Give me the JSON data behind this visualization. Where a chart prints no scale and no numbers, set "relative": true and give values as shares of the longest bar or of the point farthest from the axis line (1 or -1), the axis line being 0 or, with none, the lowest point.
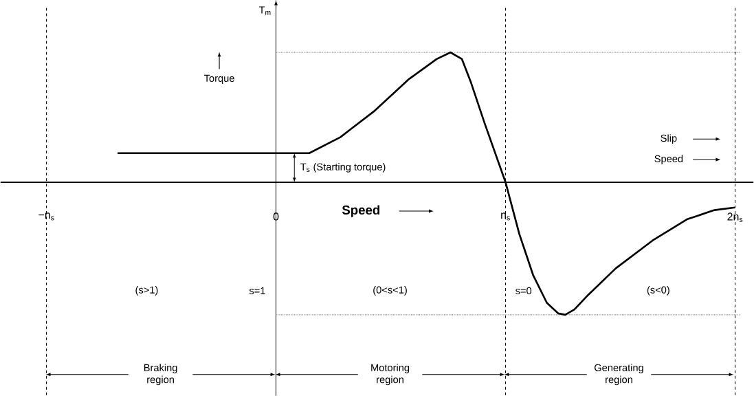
{
  "chart_data": {
    "type": "line",
    "relative": true,
    "ylabel": "T$_{m}$",
    "xlim": [
      -1.2,
      2.08
    ],
    "xticks": [
      {
        "value": -1,
        "label": "−n$_{s}$"
      },
      {
        "value": 0,
        "label": "0"
      },
      {
        "value": 1,
        "label": "n$_{s}$"
      },
      {
        "value": 2,
        "label": "2n$_{s}$"
      }
    ],
    "x": [
      -0.69,
      0.145,
      0.28,
      0.43,
      0.58,
      0.7,
      0.76,
      0.81,
      0.85,
      0.91,
      1.0,
      1.06,
      1.12,
      1.18,
      1.23,
      1.26,
      1.3,
      1.36,
      1.48,
      1.64,
      1.79,
      1.91,
      2.0
    ],
    "values": [
      0.22,
      0.22,
      0.34,
      0.54,
      0.78,
      0.93,
      0.98,
      0.93,
      0.75,
      0.44,
      0,
      -0.39,
      -0.7,
      -0.91,
      -0.99,
      -1,
      -0.96,
      -0.85,
      -0.65,
      -0.44,
      -0.28,
      -0.21,
      -0.19
    ],
    "color": "#000000",
    "line_style": "solid",
    "ref_lines": [
      {
        "axis": "x",
        "value": -1,
        "line_style": "dashed"
      },
      {
        "axis": "x",
        "value": 1,
        "line_style": "dashed"
      },
      {
        "axis": "x",
        "value": 2,
        "line_style": "dashed"
      },
      {
        "axis": "y",
        "value": 0.98,
        "line_style": "dotted"
      },
      {
        "axis": "y",
        "value": -1,
        "line_style": "dotted"
      }
    ],
    "annotations": [
      "Torque",
      "Slip",
      "Speed",
      "**Speed**",
      "(s>1)",
      "s=1",
      "(0<s<1)",
      "s=0",
      "(s<0)",
      "Braking region",
      "Motoring region",
      "Generating region",
      {
        "text": "T$_{s}$ (Starting torque)",
        "x": 0,
        "y": 0.22
      }
    ]
  }
}
